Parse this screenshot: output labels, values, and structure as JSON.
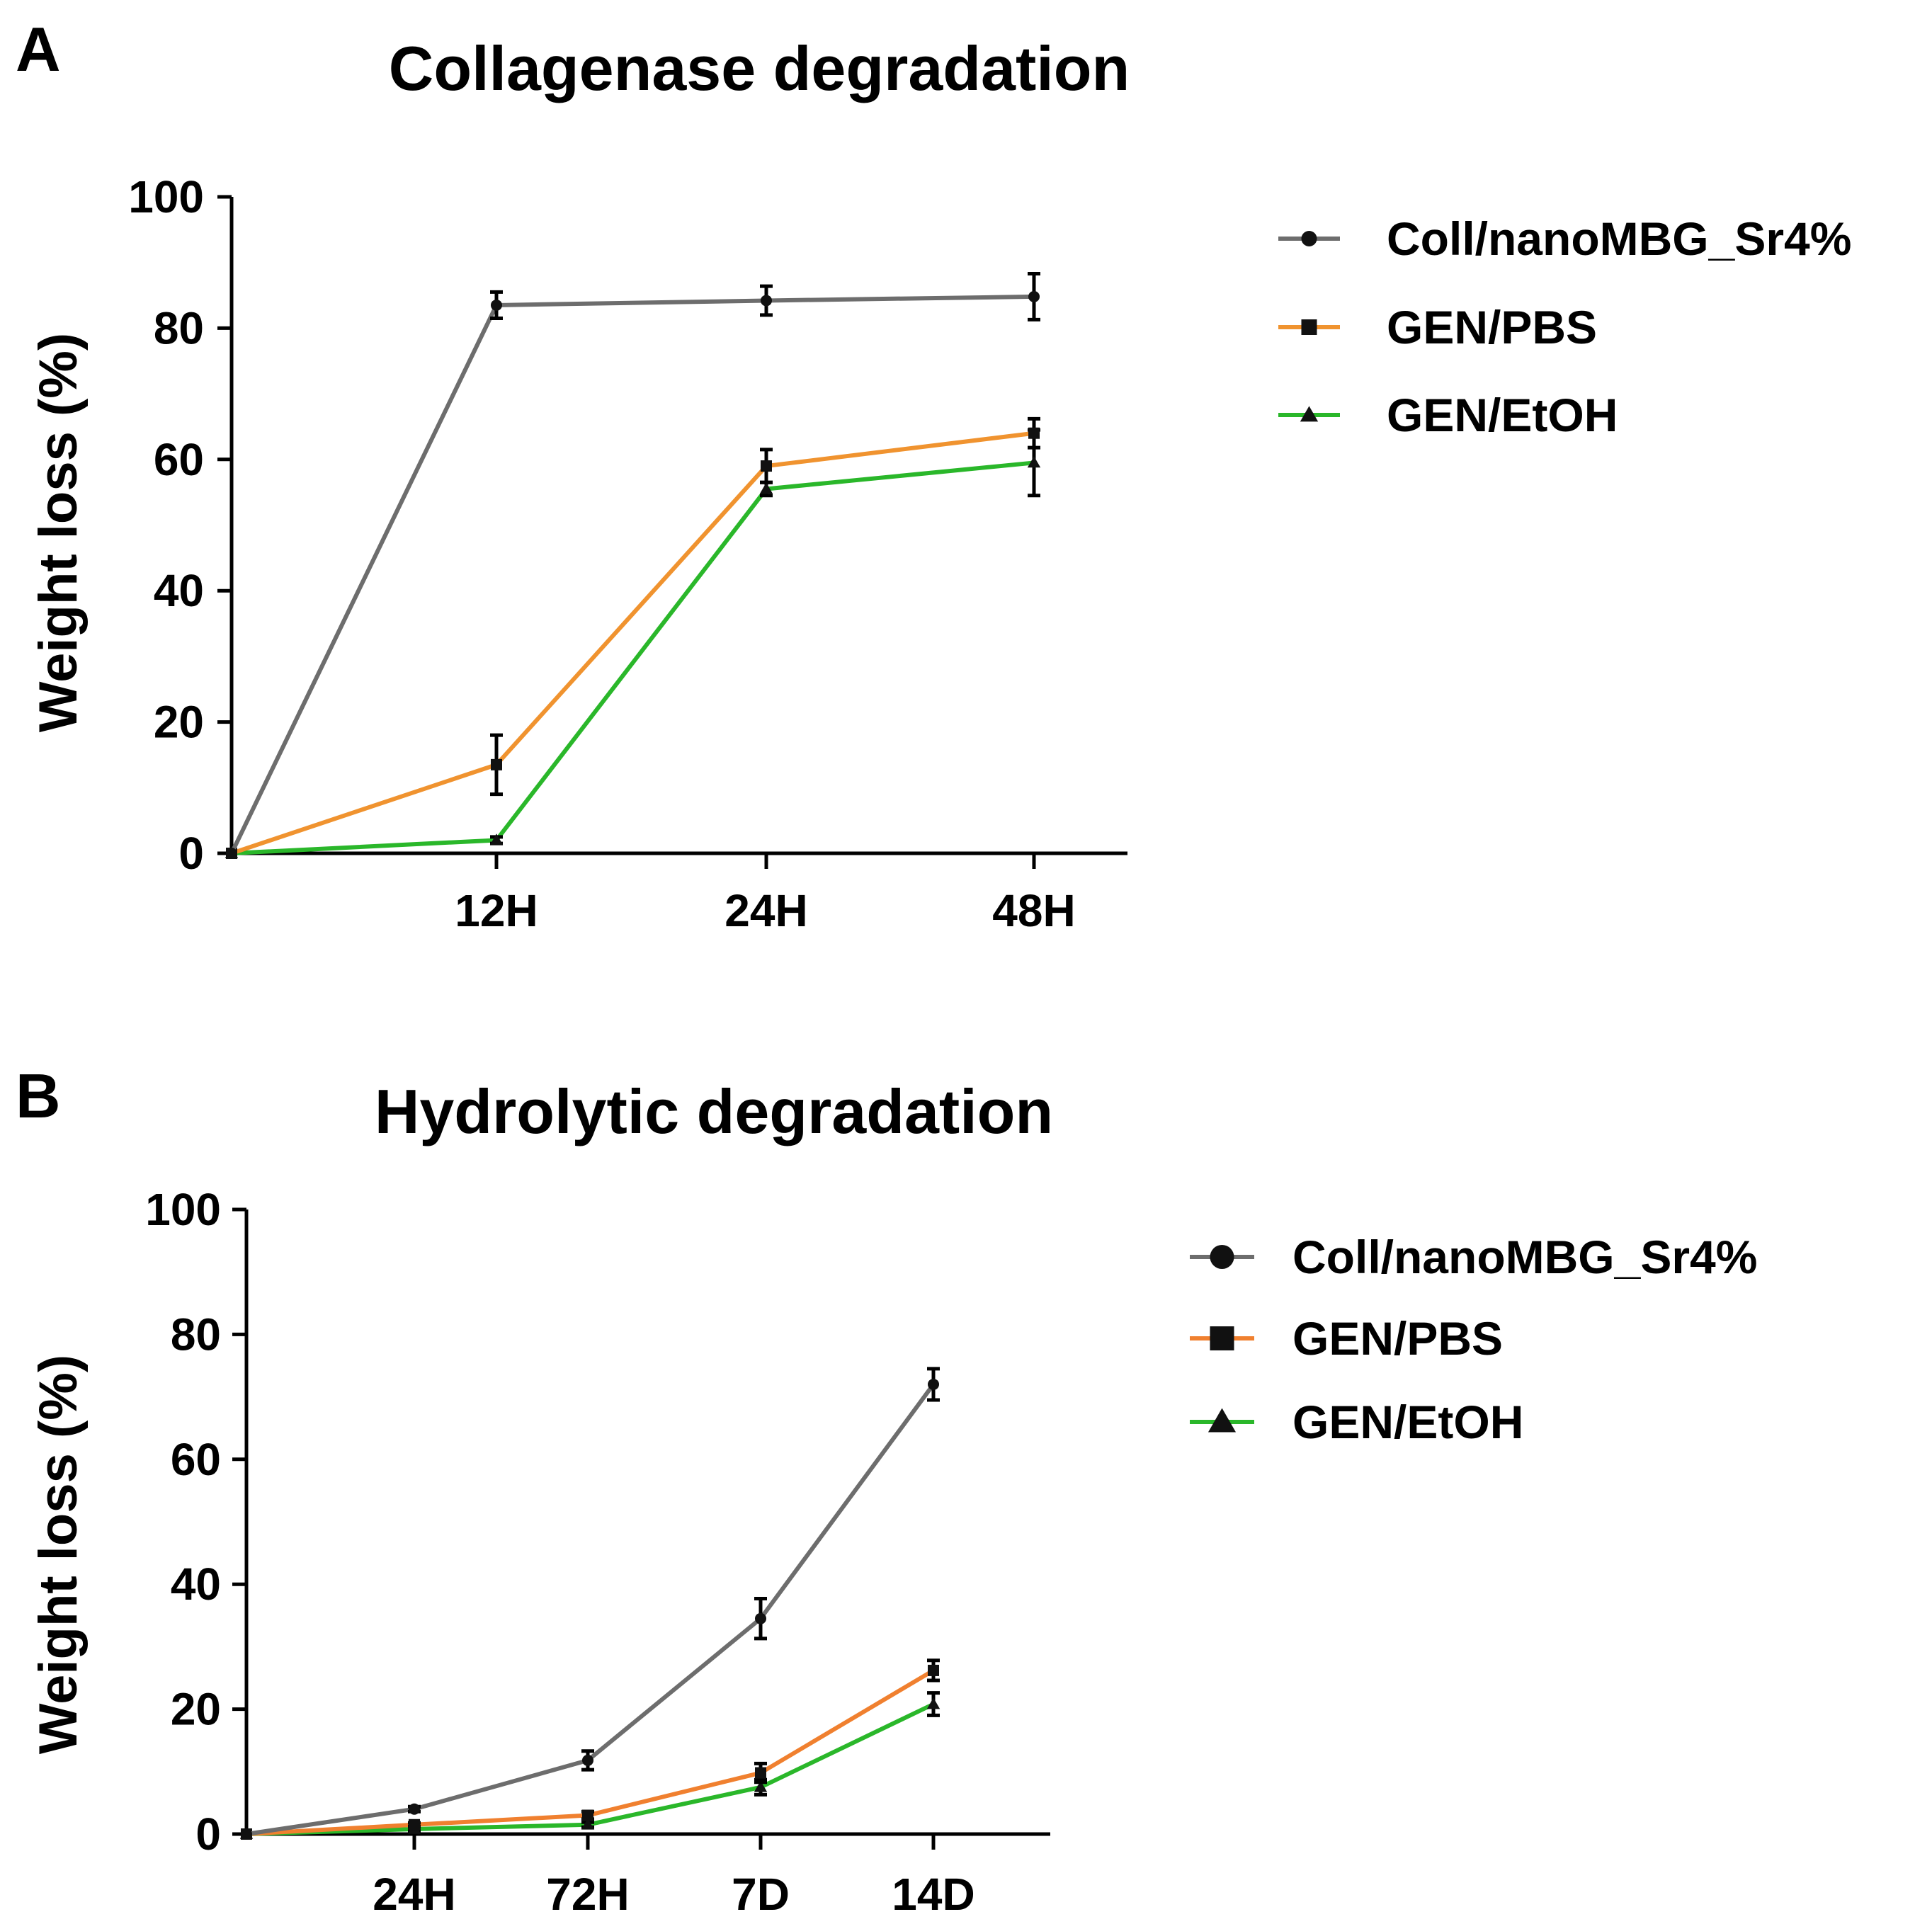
{
  "figure": {
    "panels": [
      "A",
      "B"
    ]
  },
  "chart_data": [
    {
      "type": "line",
      "panel": "A",
      "title": "Collagenase degradation",
      "xlabel": "",
      "ylabel": "Weight loss (%)",
      "categories": [
        "",
        "12H",
        "24H",
        "48H"
      ],
      "ylim": [
        0,
        100
      ],
      "yticks": [
        0,
        20,
        40,
        60,
        80,
        100
      ],
      "grid": false,
      "legend_position": "top-right",
      "series": [
        {
          "name": "Coll/nanoMBG_Sr4%",
          "color": "#6d6d6d",
          "marker": "circle",
          "values": [
            0,
            83.5,
            84.2,
            84.8
          ],
          "errors": [
            0,
            2.0,
            2.2,
            3.5
          ]
        },
        {
          "name": "GEN/PBS",
          "color": "#f0932f",
          "marker": "square",
          "values": [
            0,
            13.5,
            59.0,
            64.0
          ],
          "errors": [
            0,
            4.5,
            2.5,
            2.2
          ]
        },
        {
          "name": "GEN/EtOH",
          "color": "#2ab72a",
          "marker": "triangle",
          "values": [
            0,
            2.0,
            55.5,
            59.5
          ],
          "errors": [
            0,
            0.5,
            1.0,
            5.0
          ]
        }
      ]
    },
    {
      "type": "line",
      "panel": "B",
      "title": "Hydrolytic degradation",
      "xlabel": "",
      "ylabel": "Weight loss (%)",
      "categories": [
        "",
        "24H",
        "72H",
        "7D",
        "14D"
      ],
      "ylim": [
        0,
        100
      ],
      "yticks": [
        0,
        20,
        40,
        60,
        80,
        100
      ],
      "grid": false,
      "legend_position": "top-right",
      "series": [
        {
          "name": "Coll/nanoMBG_Sr4%",
          "color": "#6d6d6d",
          "marker": "circle",
          "values": [
            0,
            4.0,
            11.8,
            34.5,
            72.0
          ],
          "errors": [
            0,
            0.4,
            1.5,
            3.2,
            2.5
          ]
        },
        {
          "name": "GEN/PBS",
          "color": "#f0802f",
          "marker": "square",
          "values": [
            0,
            1.5,
            3.0,
            9.8,
            26.2
          ],
          "errors": [
            0,
            0.3,
            0.6,
            1.5,
            1.6
          ]
        },
        {
          "name": "GEN/EtOH",
          "color": "#2ab72a",
          "marker": "triangle",
          "values": [
            0,
            0.8,
            1.5,
            7.5,
            20.8
          ],
          "errors": [
            0,
            0.3,
            0.4,
            1.2,
            1.8
          ]
        }
      ]
    }
  ]
}
